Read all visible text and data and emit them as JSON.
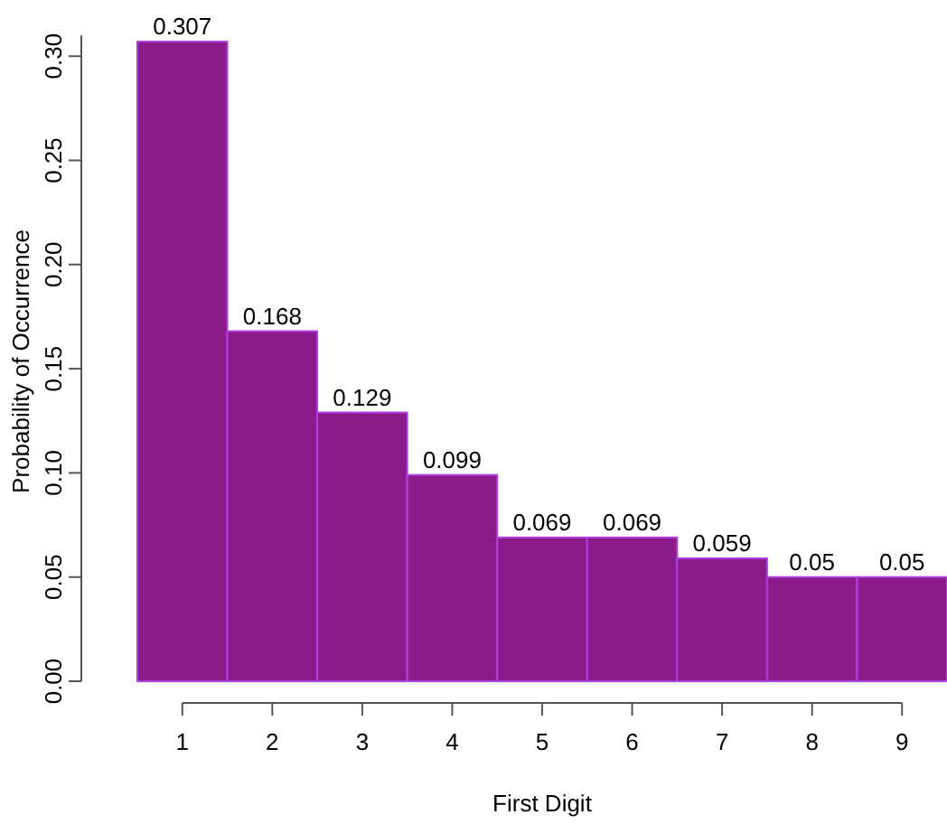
{
  "chart_data": {
    "type": "bar",
    "xlabel": "First Digit",
    "ylabel": "Probability of Occurrence",
    "categories": [
      "1",
      "2",
      "3",
      "4",
      "5",
      "6",
      "7",
      "8",
      "9"
    ],
    "values": [
      0.307,
      0.168,
      0.129,
      0.099,
      0.069,
      0.069,
      0.059,
      0.05,
      0.05
    ],
    "color": "#8b1a8b",
    "ylim": [
      0,
      0.31
    ],
    "yticks": [
      {
        "value": 0,
        "label": "0.00"
      },
      {
        "value": 0.05,
        "label": "0.05"
      },
      {
        "value": 0.1,
        "label": "0.10"
      },
      {
        "value": 0.15,
        "label": "0.15"
      },
      {
        "value": 0.2,
        "label": "0.20"
      },
      {
        "value": 0.25,
        "label": "0.25"
      },
      {
        "value": 0.3,
        "label": "0.30"
      }
    ],
    "data_labels": true,
    "grid": false
  }
}
